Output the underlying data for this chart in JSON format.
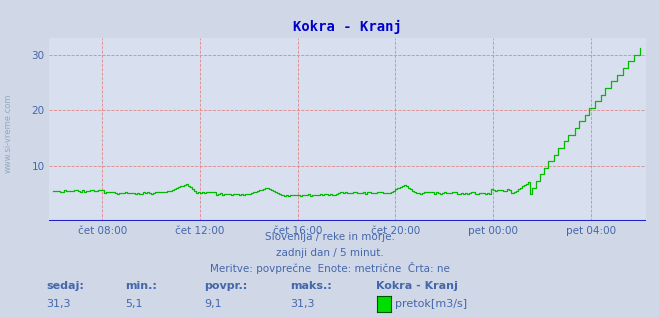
{
  "title": "Kokra - Kranj",
  "title_color": "#0000cc",
  "bg_color": "#d0d8e8",
  "plot_bg_color": "#d8e0f0",
  "line_color": "#00bb00",
  "grid_color": "#dd8888",
  "text_color": "#4466aa",
  "watermark_color": "#6688aa",
  "footer_line1": "Slovenija / reke in morje.",
  "footer_line2": "zadnji dan / 5 minut.",
  "footer_line3": "Meritve: povprečne  Enote: metrične  Črta: ne",
  "legend_title": "Kokra - Kranj",
  "legend_label": "pretok[m3/s]",
  "legend_color": "#00dd00",
  "stat_sedaj": "31,3",
  "stat_min": "5,1",
  "stat_povpr": "9,1",
  "stat_maks": "31,3",
  "ylim": [
    0,
    33
  ],
  "yticks": [
    10,
    20,
    30
  ],
  "xtick_labels": [
    "čet 08:00",
    "čet 12:00",
    "čet 16:00",
    "čet 20:00",
    "pet 00:00",
    "pet 04:00"
  ],
  "watermark": "www.si-vreme.com"
}
